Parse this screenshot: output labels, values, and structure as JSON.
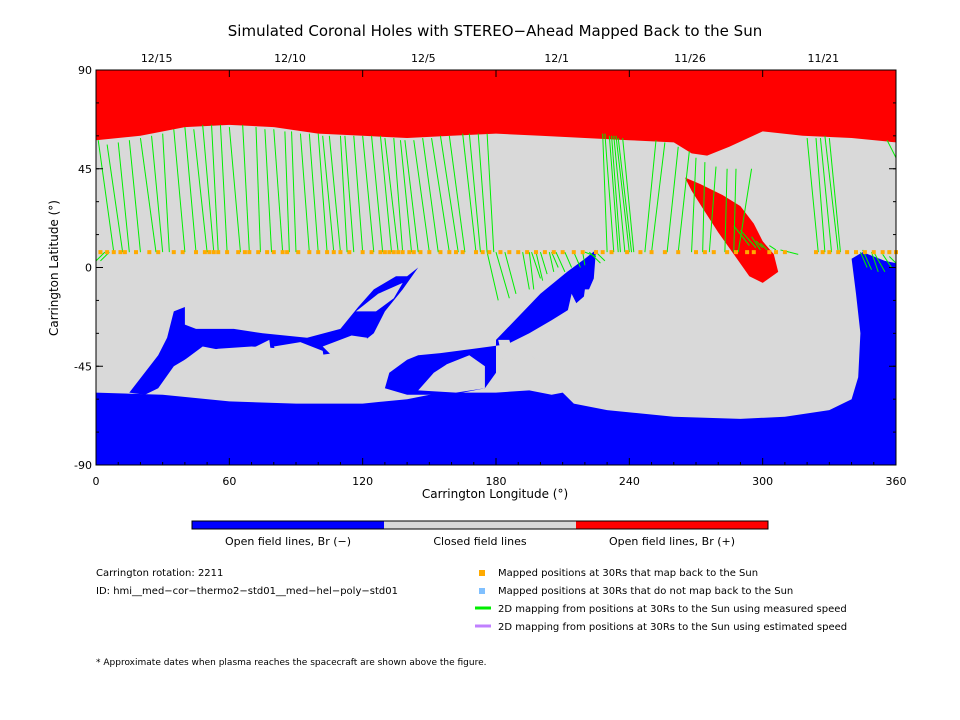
{
  "chart_data": {
    "type": "map",
    "title": "Simulated Coronal Holes with STEREO−Ahead Mapped Back to the Sun",
    "xlabel": "Carrington Longitude (°)",
    "ylabel": "Carrington Latitude (°)",
    "xlim": [
      0,
      360
    ],
    "ylim": [
      -90,
      90
    ],
    "x_ticks": [
      0,
      60,
      120,
      180,
      240,
      300,
      360
    ],
    "y_ticks": [
      90,
      45,
      0,
      -45,
      -90
    ],
    "date_ticks": [
      {
        "label": "12/15",
        "lon": 30
      },
      {
        "label": "12/10",
        "lon": 90
      },
      {
        "label": "12/5",
        "lon": 150
      },
      {
        "label": "12/1",
        "lon": 210
      },
      {
        "label": "11/26",
        "lon": 270
      },
      {
        "label": "11/21",
        "lon": 330
      }
    ],
    "colors": {
      "open_negative": "#0000ff",
      "closed": "#d9d9d9",
      "open_positive": "#ff0000",
      "mapped_back": "#ffaa00",
      "not_mapped": "#80c0ff",
      "measured_speed": "#00ee00",
      "estimated_speed": "#c080ff"
    },
    "regions": {
      "north_positive": [
        [
          0,
          90
        ],
        [
          360,
          90
        ],
        [
          360,
          57
        ],
        [
          340,
          59
        ],
        [
          318,
          60
        ],
        [
          300,
          62
        ],
        [
          285,
          55
        ],
        [
          275,
          51
        ],
        [
          268,
          52
        ],
        [
          260,
          57
        ],
        [
          240,
          58
        ],
        [
          220,
          59
        ],
        [
          200,
          60
        ],
        [
          180,
          61
        ],
        [
          160,
          60
        ],
        [
          140,
          59
        ],
        [
          120,
          60
        ],
        [
          100,
          61
        ],
        [
          80,
          64
        ],
        [
          60,
          65
        ],
        [
          40,
          64
        ],
        [
          20,
          60
        ],
        [
          0,
          58
        ]
      ],
      "red_tongue": [
        [
          265,
          41
        ],
        [
          272,
          38
        ],
        [
          282,
          33
        ],
        [
          290,
          28
        ],
        [
          296,
          20
        ],
        [
          300,
          12
        ],
        [
          305,
          6
        ],
        [
          307,
          -2
        ],
        [
          300,
          -7
        ],
        [
          294,
          -4
        ],
        [
          287,
          6
        ],
        [
          280,
          16
        ],
        [
          273,
          27
        ],
        [
          268,
          35
        ]
      ],
      "south_negative": [
        [
          0,
          -57
        ],
        [
          30,
          -58
        ],
        [
          60,
          -61
        ],
        [
          90,
          -62
        ],
        [
          120,
          -62
        ],
        [
          140,
          -60
        ],
        [
          155,
          -57
        ],
        [
          180,
          -57
        ],
        [
          195,
          -56
        ],
        [
          205,
          -58
        ],
        [
          210,
          -57
        ],
        [
          215,
          -62
        ],
        [
          230,
          -65
        ],
        [
          260,
          -68
        ],
        [
          290,
          -69
        ],
        [
          310,
          -68
        ],
        [
          330,
          -65
        ],
        [
          340,
          -60
        ],
        [
          343,
          -50
        ],
        [
          344,
          -30
        ],
        [
          342,
          -12
        ],
        [
          340,
          4
        ],
        [
          345,
          7
        ],
        [
          355,
          3
        ],
        [
          360,
          2
        ],
        [
          360,
          -90
        ],
        [
          0,
          -90
        ]
      ],
      "mid_negative": [
        [
          180,
          -33
        ],
        [
          200,
          -12
        ],
        [
          212,
          -2
        ],
        [
          220,
          4
        ],
        [
          225,
          8
        ],
        [
          224,
          -5
        ],
        [
          221,
          -12
        ],
        [
          213,
          -19
        ],
        [
          205,
          -24
        ],
        [
          195,
          -30
        ],
        [
          185,
          -35
        ],
        [
          170,
          -37
        ],
        [
          155,
          -39
        ],
        [
          145,
          -40
        ],
        [
          140,
          -42
        ],
        [
          132,
          -48
        ],
        [
          130,
          -55
        ],
        [
          140,
          -58
        ],
        [
          160,
          -58
        ],
        [
          175,
          -55
        ],
        [
          180,
          -48
        ]
      ],
      "left_negative": [
        [
          35,
          -20
        ],
        [
          40,
          -18
        ],
        [
          40,
          -26
        ],
        [
          45,
          -28
        ],
        [
          62,
          -28
        ],
        [
          75,
          -30
        ],
        [
          95,
          -32
        ],
        [
          110,
          -28
        ],
        [
          118,
          -18
        ],
        [
          125,
          -10
        ],
        [
          135,
          -4
        ],
        [
          140,
          -4
        ],
        [
          145,
          0
        ],
        [
          138,
          -10
        ],
        [
          130,
          -20
        ],
        [
          125,
          -30
        ],
        [
          115,
          -38
        ],
        [
          100,
          -40
        ],
        [
          85,
          -37
        ],
        [
          70,
          -36
        ],
        [
          55,
          -37
        ],
        [
          45,
          -39
        ],
        [
          35,
          -45
        ],
        [
          28,
          -55
        ],
        [
          22,
          -58
        ],
        [
          15,
          -57
        ],
        [
          28,
          -40
        ],
        [
          32,
          -32
        ]
      ]
    },
    "holes": [
      [
        [
          42,
          -57
        ],
        [
          50,
          -48
        ],
        [
          56,
          -42
        ],
        [
          58,
          -38
        ],
        [
          48,
          -36
        ],
        [
          40,
          -42
        ],
        [
          35,
          -50
        ]
      ],
      [
        [
          62,
          -46
        ],
        [
          68,
          -38
        ],
        [
          78,
          -33
        ],
        [
          79,
          -41
        ],
        [
          72,
          -46
        ]
      ],
      [
        [
          80,
          -36
        ],
        [
          92,
          -34
        ],
        [
          102,
          -38
        ],
        [
          103,
          -44
        ],
        [
          96,
          -47
        ],
        [
          84,
          -44
        ]
      ],
      [
        [
          102,
          -36
        ],
        [
          115,
          -31
        ],
        [
          122,
          -32
        ],
        [
          120,
          -40
        ],
        [
          108,
          -42
        ]
      ],
      [
        [
          117,
          -20
        ],
        [
          127,
          -12
        ],
        [
          138,
          -7
        ],
        [
          134,
          -14
        ],
        [
          126,
          -20
        ]
      ],
      [
        [
          158,
          -44
        ],
        [
          168,
          -40
        ],
        [
          175,
          -45
        ],
        [
          175,
          -55
        ],
        [
          162,
          -57
        ],
        [
          145,
          -56
        ],
        [
          152,
          -48
        ]
      ]
    ],
    "islands": [
      [
        [
          181,
          -33
        ],
        [
          183,
          -42
        ],
        [
          186,
          -48
        ],
        [
          188,
          -40
        ],
        [
          186,
          -33
        ]
      ],
      [
        [
          214,
          -12
        ],
        [
          217,
          -18
        ],
        [
          219,
          -24
        ],
        [
          215,
          -29
        ],
        [
          212,
          -21
        ]
      ],
      [
        [
          196,
          -34
        ],
        [
          199,
          -38
        ],
        [
          198,
          -42
        ],
        [
          195,
          -39
        ]
      ],
      [
        [
          220,
          -10
        ],
        [
          224,
          -10
        ],
        [
          222,
          -25
        ],
        [
          218,
          -25
        ]
      ]
    ],
    "mapped_positions": {
      "latitude": 7,
      "longitudes": [
        2,
        5,
        8,
        11,
        13,
        18,
        24,
        28,
        35,
        39,
        45,
        49,
        51,
        53,
        55,
        59,
        64,
        67,
        69,
        73,
        77,
        80,
        84,
        86,
        91,
        96,
        100,
        104,
        107,
        110,
        114,
        120,
        124,
        128,
        130,
        132,
        134,
        136,
        138,
        141,
        143,
        146,
        150,
        155,
        159,
        162,
        165,
        171,
        174,
        177,
        182,
        186,
        190,
        194,
        198,
        202,
        206,
        210,
        215,
        219,
        225,
        228,
        232,
        239,
        245,
        250,
        256,
        262,
        270,
        274,
        278,
        284,
        288,
        293,
        296,
        303,
        306,
        310,
        324,
        327,
        330,
        334,
        338,
        342,
        346,
        350,
        354,
        357,
        360
      ],
      "label": "Mapped positions at 30Rs that map back to the Sun"
    },
    "field_lines": [
      [
        1,
        58,
        8,
        7
      ],
      [
        5,
        56,
        12,
        7
      ],
      [
        10,
        57,
        15,
        7
      ],
      [
        15,
        58,
        20,
        7
      ],
      [
        20,
        59,
        27,
        7
      ],
      [
        25,
        60,
        30,
        7
      ],
      [
        30,
        61,
        33,
        7
      ],
      [
        35,
        63,
        40,
        7
      ],
      [
        40,
        64,
        45,
        7
      ],
      [
        44,
        63,
        50,
        7
      ],
      [
        48,
        65,
        53,
        7
      ],
      [
        52,
        65,
        55,
        7
      ],
      [
        56,
        65,
        59,
        7
      ],
      [
        60,
        64,
        65,
        7
      ],
      [
        66,
        65,
        69,
        7
      ],
      [
        72,
        64,
        74,
        7
      ],
      [
        76,
        63,
        79,
        7
      ],
      [
        80,
        63,
        84,
        7
      ],
      [
        85,
        62,
        87,
        7
      ],
      [
        88,
        62,
        90,
        7
      ],
      [
        92,
        61,
        96,
        7
      ],
      [
        96,
        61,
        100,
        7
      ],
      [
        100,
        61,
        104,
        7
      ],
      [
        102,
        60,
        107,
        7
      ],
      [
        105,
        60,
        110,
        7
      ],
      [
        110,
        60,
        113,
        7
      ],
      [
        112,
        60,
        116,
        7
      ],
      [
        116,
        60,
        120,
        7
      ],
      [
        120,
        60,
        125,
        7
      ],
      [
        124,
        60,
        129,
        7
      ],
      [
        128,
        60,
        133,
        7
      ],
      [
        130,
        59,
        136,
        7
      ],
      [
        134,
        59,
        138,
        7
      ],
      [
        137,
        58,
        142,
        7
      ],
      [
        139,
        58,
        145,
        7
      ],
      [
        143,
        58,
        150,
        7
      ],
      [
        147,
        59,
        154,
        7
      ],
      [
        151,
        59,
        159,
        7
      ],
      [
        155,
        60,
        163,
        7
      ],
      [
        159,
        60,
        166,
        7
      ],
      [
        165,
        61,
        171,
        7
      ],
      [
        168,
        61,
        173,
        7
      ],
      [
        172,
        61,
        176,
        7
      ],
      [
        176,
        61,
        179,
        7
      ],
      [
        228,
        61,
        230,
        7
      ],
      [
        229,
        61,
        233,
        7
      ],
      [
        231,
        60,
        235,
        7
      ],
      [
        232,
        60,
        236,
        7
      ],
      [
        233,
        60,
        238,
        7
      ],
      [
        234,
        60,
        240,
        7
      ],
      [
        235,
        59,
        241,
        7
      ],
      [
        237,
        59,
        242,
        7
      ],
      [
        252,
        58,
        247,
        7
      ],
      [
        256,
        57,
        250,
        7
      ],
      [
        262,
        55,
        257,
        7
      ],
      [
        267,
        53,
        262,
        7
      ],
      [
        270,
        50,
        268,
        7
      ],
      [
        274,
        48,
        273,
        7
      ],
      [
        279,
        46,
        276,
        7
      ],
      [
        284,
        45,
        283,
        7
      ],
      [
        288,
        45,
        287,
        7
      ],
      [
        295,
        45,
        289,
        7
      ],
      [
        320,
        59,
        325,
        7
      ],
      [
        324,
        59,
        328,
        7
      ],
      [
        326,
        59,
        331,
        7
      ],
      [
        328,
        60,
        334,
        7
      ],
      [
        330,
        59,
        335,
        7
      ],
      [
        356,
        58,
        360,
        50
      ]
    ],
    "field_lines_lower": [
      [
        181,
        -15,
        176,
        7
      ],
      [
        186,
        -14,
        180,
        7
      ],
      [
        189,
        -12,
        184,
        7
      ],
      [
        195,
        -10,
        192,
        7
      ],
      [
        197,
        -10,
        195,
        7
      ],
      [
        200,
        -5,
        196,
        7
      ],
      [
        201,
        -6,
        198,
        7
      ],
      [
        203,
        -3,
        200,
        7
      ],
      [
        206,
        -2,
        204,
        7
      ],
      [
        208,
        0,
        205,
        7
      ],
      [
        211,
        -2,
        207,
        7
      ],
      [
        214,
        0,
        211,
        7
      ],
      [
        218,
        0,
        215,
        7
      ],
      [
        220,
        1,
        219,
        7
      ],
      [
        225,
        5,
        220,
        7
      ],
      [
        227,
        2,
        222,
        7
      ],
      [
        229,
        3,
        225,
        7
      ],
      [
        287,
        19,
        294,
        10
      ],
      [
        290,
        17,
        297,
        9
      ],
      [
        295,
        14,
        299,
        8
      ],
      [
        297,
        12,
        300,
        9
      ],
      [
        299,
        11,
        302,
        8
      ],
      [
        303,
        10,
        306,
        8
      ],
      [
        308,
        8,
        312,
        7
      ],
      [
        312,
        7,
        316,
        6
      ],
      [
        0,
        3,
        4,
        7
      ],
      [
        2,
        3,
        6,
        7
      ],
      [
        344,
        7,
        347,
        0
      ],
      [
        345,
        8,
        349,
        -1
      ],
      [
        349,
        7,
        352,
        -2
      ],
      [
        350,
        7,
        355,
        -2
      ],
      [
        354,
        6,
        358,
        0
      ],
      [
        357,
        5,
        360,
        2
      ]
    ],
    "legend": {
      "colorbar": [
        "Open field lines, Br (−)",
        "Closed field lines",
        "Open field lines, Br (+)"
      ],
      "items": [
        "Mapped positions at 30Rs that map back to the Sun",
        "Mapped positions at 30Rs that do not map back to the Sun",
        "2D mapping from positions at 30Rs to the Sun using measured speed",
        "2D mapping from positions at 30Rs to the Sun using estimated speed"
      ]
    }
  },
  "info": {
    "rotation": "Carrington rotation: 2211",
    "id": "ID: hmi__med−cor−thermo2−std01__med−hel−poly−std01",
    "footnote": "* Approximate dates when plasma reaches the spacecraft are shown above the figure."
  }
}
